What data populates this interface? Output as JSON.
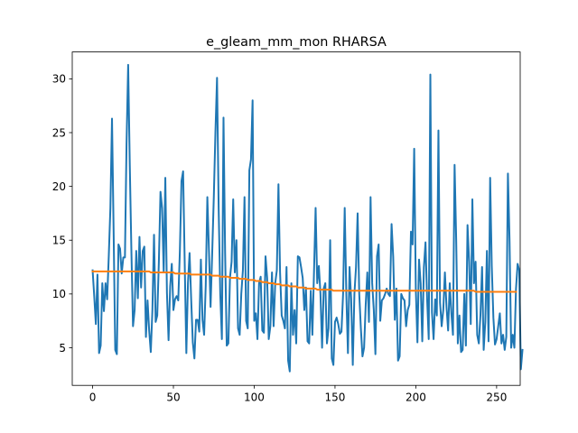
{
  "chart_data": {
    "type": "line",
    "title": "e_gleam_mm_mon RHARSA",
    "xlabel": "",
    "ylabel": "",
    "xlim": [
      -12.6,
      264.6
    ],
    "ylim": [
      1.5,
      32.5
    ],
    "xticks": [
      0,
      50,
      100,
      150,
      200,
      250
    ],
    "yticks": [
      5,
      10,
      15,
      20,
      25,
      30
    ],
    "grid": false,
    "legend": "none",
    "colors": [
      "#1f77b4",
      "#ff7f0e"
    ],
    "series": [
      {
        "values": [
          12.2,
          9.8,
          7.2,
          11.8,
          4.5,
          5.2,
          11.0,
          8.4,
          11.0,
          9.5,
          13.5,
          18.0,
          26.3,
          15.8,
          4.8,
          4.4,
          14.6,
          14.2,
          11.9,
          13.4,
          13.4,
          24.0,
          31.3,
          22.0,
          14.0,
          7.0,
          8.5,
          14.0,
          9.6,
          15.3,
          10.6,
          14.0,
          14.4,
          6.0,
          9.4,
          6.6,
          4.6,
          8.5,
          15.5,
          7.4,
          8.0,
          13.0,
          19.5,
          18.0,
          12.0,
          20.8,
          10.1,
          5.7,
          10.7,
          12.8,
          8.5,
          9.5,
          9.8,
          9.4,
          14.0,
          20.5,
          21.4,
          12.8,
          4.5,
          11.0,
          13.8,
          9.5,
          5.5,
          4.0,
          7.6,
          7.6,
          6.5,
          13.2,
          7.6,
          6.2,
          10.8,
          19.0,
          14.0,
          8.8,
          13.8,
          19.0,
          25.0,
          30.1,
          18.0,
          10.0,
          5.8,
          26.4,
          13.8,
          5.2,
          5.4,
          11.5,
          13.0,
          18.8,
          12.0,
          15.0,
          6.8,
          6.2,
          10.0,
          12.2,
          19.0,
          7.5,
          6.8,
          21.5,
          22.5,
          28.0,
          7.5,
          8.2,
          5.8,
          11.0,
          11.6,
          6.6,
          6.4,
          13.5,
          11.5,
          5.8,
          7.0,
          12.0,
          7.0,
          11.0,
          12.2,
          20.2,
          12.0,
          8.0,
          7.5,
          6.8,
          12.5,
          3.8,
          2.8,
          11.0,
          6.2,
          8.5,
          5.4,
          13.5,
          13.4,
          12.5,
          11.5,
          8.5,
          10.6,
          5.6,
          5.4,
          10.3,
          6.2,
          12.0,
          18.0,
          11.0,
          12.6,
          10.0,
          5.0,
          10.5,
          11.0,
          5.4,
          6.8,
          15.0,
          4.0,
          3.4,
          7.4,
          7.8,
          7.2,
          6.3,
          6.5,
          10.0,
          18.0,
          10.0,
          4.5,
          12.5,
          9.5,
          3.4,
          10.0,
          12.5,
          17.5,
          10.0,
          6.8,
          4.2,
          5.0,
          9.0,
          12.0,
          7.4,
          19.0,
          11.0,
          8.5,
          4.4,
          13.5,
          14.6,
          7.5,
          9.4,
          9.6,
          10.0,
          10.5,
          10.0,
          9.8,
          16.5,
          13.5,
          7.6,
          10.5,
          3.8,
          4.2,
          10.0,
          9.6,
          9.4,
          7.0,
          8.5,
          9.0,
          15.8,
          14.6,
          23.5,
          10.5,
          5.5,
          13.2,
          11.0,
          5.6,
          12.5,
          14.8,
          9.5,
          5.8,
          30.4,
          8.3,
          5.8,
          9.5,
          8.0,
          25.2,
          9.2,
          7.0,
          8.5,
          12.0,
          8.8,
          6.6,
          11.0,
          8.2,
          6.2,
          22.0,
          15.0,
          5.4,
          8.0,
          4.6,
          4.8,
          10.0,
          5.2,
          16.4,
          13.0,
          7.2,
          18.8,
          11.0,
          13.0,
          6.2,
          5.4,
          8.0,
          12.5,
          4.8,
          7.4,
          14.0,
          5.6,
          20.8,
          12.6,
          7.8,
          5.3,
          5.8,
          7.0,
          8.2,
          5.4,
          6.2,
          4.8,
          6.0,
          21.2,
          15.0,
          5.0,
          6.2,
          5.0,
          10.5,
          12.8,
          12.2,
          3.0,
          4.8
        ]
      },
      {
        "values": [
          12.1,
          12.1,
          12.1,
          12.1,
          12.1,
          12.1,
          12.1,
          12.1,
          12.1,
          12.1,
          12.1,
          12.1,
          12.1,
          12.1,
          12.1,
          12.1,
          12.1,
          12.1,
          12.1,
          12.1,
          12.1,
          12.1,
          12.1,
          12.1,
          12.1,
          12.1,
          12.1,
          12.1,
          12.1,
          12.1,
          12.1,
          12.1,
          12.1,
          12.1,
          12.1,
          12.1,
          12.0,
          12.0,
          12.0,
          12.0,
          12.0,
          12.0,
          12.0,
          12.0,
          12.0,
          12.0,
          12.0,
          12.0,
          12.0,
          12.0,
          12.0,
          11.9,
          11.9,
          11.9,
          11.9,
          11.9,
          11.9,
          11.9,
          11.9,
          11.9,
          11.9,
          11.8,
          11.8,
          11.8,
          11.8,
          11.8,
          11.8,
          11.8,
          11.8,
          11.8,
          11.8,
          11.8,
          11.8,
          11.8,
          11.7,
          11.7,
          11.7,
          11.7,
          11.7,
          11.6,
          11.6,
          11.6,
          11.6,
          11.6,
          11.6,
          11.5,
          11.5,
          11.5,
          11.5,
          11.5,
          11.5,
          11.4,
          11.4,
          11.4,
          11.4,
          11.4,
          11.3,
          11.3,
          11.3,
          11.3,
          11.3,
          11.2,
          11.2,
          11.2,
          11.2,
          11.1,
          11.1,
          11.1,
          11.1,
          11.0,
          11.0,
          11.0,
          11.0,
          10.9,
          10.9,
          10.9,
          10.9,
          10.8,
          10.8,
          10.8,
          10.8,
          10.8,
          10.7,
          10.7,
          10.7,
          10.7,
          10.7,
          10.6,
          10.6,
          10.6,
          10.6,
          10.6,
          10.5,
          10.5,
          10.5,
          10.5,
          10.5,
          10.5,
          10.5,
          10.4,
          10.4,
          10.4,
          10.4,
          10.4,
          10.4,
          10.4,
          10.4,
          10.4,
          10.4,
          10.3,
          10.3,
          10.3,
          10.3,
          10.3,
          10.3,
          10.3,
          10.3,
          10.3,
          10.3,
          10.3,
          10.3,
          10.3,
          10.3,
          10.3,
          10.3,
          10.3,
          10.3,
          10.3,
          10.3,
          10.3,
          10.3,
          10.3,
          10.3,
          10.3,
          10.3,
          10.3,
          10.3,
          10.3,
          10.3,
          10.3,
          10.3,
          10.3,
          10.3,
          10.3,
          10.3,
          10.3,
          10.3,
          10.3,
          10.3,
          10.3,
          10.3,
          10.3,
          10.3,
          10.3,
          10.3,
          10.3,
          10.3,
          10.3,
          10.3,
          10.3,
          10.3,
          10.3,
          10.3,
          10.3,
          10.3,
          10.3,
          10.3,
          10.3,
          10.3,
          10.3,
          10.3,
          10.3,
          10.3,
          10.3,
          10.3,
          10.3,
          10.3,
          10.3,
          10.3,
          10.3,
          10.3,
          10.3,
          10.3,
          10.3,
          10.3,
          10.3,
          10.3,
          10.3,
          10.3,
          10.3,
          10.3,
          10.3,
          10.3,
          10.3,
          10.3,
          10.3,
          10.3,
          10.2,
          10.2,
          10.2,
          10.2,
          10.2,
          10.2,
          10.2,
          10.2,
          10.2,
          10.2,
          10.2,
          10.2,
          10.2,
          10.2,
          10.2,
          10.2,
          10.2,
          10.2,
          10.2,
          10.2,
          10.2,
          10.2,
          10.2,
          10.2,
          10.2,
          10.2
        ]
      }
    ]
  }
}
